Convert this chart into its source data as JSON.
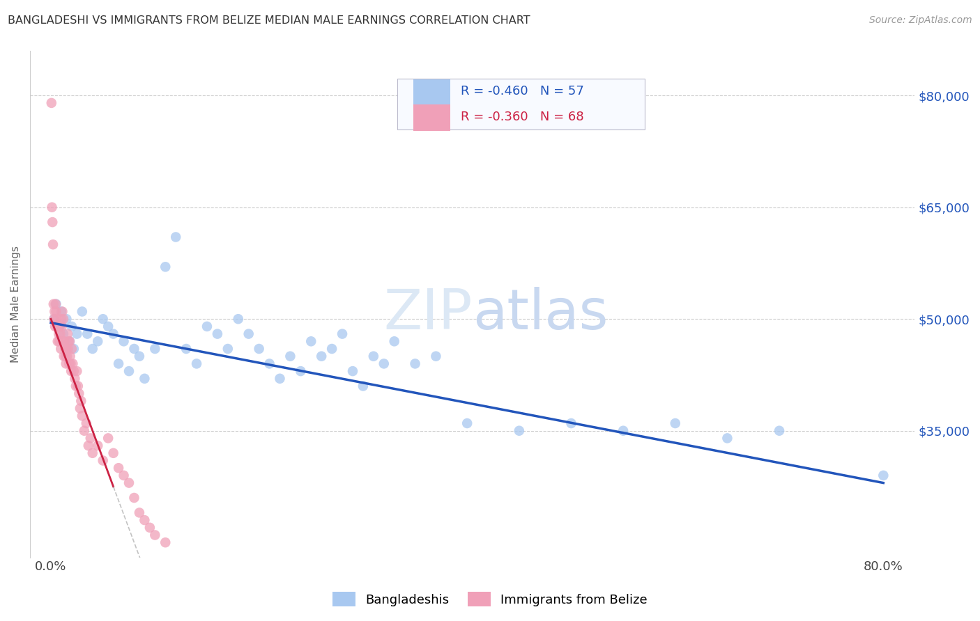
{
  "title": "BANGLADESHI VS IMMIGRANTS FROM BELIZE MEDIAN MALE EARNINGS CORRELATION CHART",
  "source": "Source: ZipAtlas.com",
  "ylabel": "Median Male Earnings",
  "background_color": "#ffffff",
  "blue_color": "#a8c8f0",
  "pink_color": "#f0a0b8",
  "blue_line_color": "#2255bb",
  "pink_line_color": "#cc2244",
  "r_blue": -0.46,
  "n_blue": 57,
  "r_pink": -0.36,
  "n_pink": 68,
  "ytick_labels": [
    "$80,000",
    "$65,000",
    "$50,000",
    "$35,000"
  ],
  "ytick_values": [
    80000,
    65000,
    50000,
    35000
  ],
  "xtick_labels": [
    "0.0%",
    "80.0%"
  ],
  "xtick_values": [
    0.0,
    80.0
  ],
  "xmin": -2.0,
  "xmax": 83.0,
  "ymin": 18000,
  "ymax": 86000,
  "blue_scatter_x": [
    0.3,
    0.5,
    0.8,
    1.0,
    1.2,
    1.5,
    1.8,
    2.0,
    2.2,
    2.5,
    3.0,
    3.5,
    4.0,
    4.5,
    5.0,
    5.5,
    6.0,
    6.5,
    7.0,
    7.5,
    8.0,
    8.5,
    9.0,
    10.0,
    11.0,
    12.0,
    13.0,
    14.0,
    15.0,
    16.0,
    17.0,
    18.0,
    19.0,
    20.0,
    21.0,
    22.0,
    23.0,
    24.0,
    25.0,
    26.0,
    27.0,
    28.0,
    29.0,
    30.0,
    31.0,
    32.0,
    33.0,
    35.0,
    37.0,
    40.0,
    45.0,
    50.0,
    55.0,
    60.0,
    65.0,
    70.0,
    80.0
  ],
  "blue_scatter_y": [
    50000,
    52000,
    49000,
    51000,
    48000,
    50000,
    47000,
    49000,
    46000,
    48000,
    51000,
    48000,
    46000,
    47000,
    50000,
    49000,
    48000,
    44000,
    47000,
    43000,
    46000,
    45000,
    42000,
    46000,
    57000,
    61000,
    46000,
    44000,
    49000,
    48000,
    46000,
    50000,
    48000,
    46000,
    44000,
    42000,
    45000,
    43000,
    47000,
    45000,
    46000,
    48000,
    43000,
    41000,
    45000,
    44000,
    47000,
    44000,
    45000,
    36000,
    35000,
    36000,
    35000,
    36000,
    34000,
    35000,
    29000
  ],
  "pink_scatter_x": [
    0.05,
    0.1,
    0.15,
    0.2,
    0.25,
    0.3,
    0.35,
    0.4,
    0.45,
    0.5,
    0.55,
    0.6,
    0.65,
    0.7,
    0.75,
    0.8,
    0.85,
    0.9,
    0.95,
    1.0,
    1.05,
    1.1,
    1.15,
    1.2,
    1.25,
    1.3,
    1.35,
    1.4,
    1.45,
    1.5,
    1.55,
    1.6,
    1.65,
    1.7,
    1.75,
    1.8,
    1.85,
    1.9,
    1.95,
    2.0,
    2.1,
    2.2,
    2.3,
    2.4,
    2.5,
    2.6,
    2.7,
    2.8,
    2.9,
    3.0,
    3.2,
    3.4,
    3.6,
    3.8,
    4.0,
    4.5,
    5.0,
    5.5,
    6.0,
    6.5,
    7.0,
    7.5,
    8.0,
    8.5,
    9.0,
    9.5,
    10.0,
    11.0
  ],
  "pink_scatter_y": [
    79000,
    65000,
    63000,
    60000,
    52000,
    50000,
    51000,
    49000,
    52000,
    51000,
    50000,
    49000,
    47000,
    49000,
    48000,
    47000,
    49000,
    48000,
    46000,
    50000,
    49000,
    51000,
    47000,
    50000,
    45000,
    47000,
    46000,
    45000,
    44000,
    46000,
    45000,
    48000,
    46000,
    47000,
    44000,
    47000,
    45000,
    44000,
    43000,
    46000,
    44000,
    43000,
    42000,
    41000,
    43000,
    41000,
    40000,
    38000,
    39000,
    37000,
    35000,
    36000,
    33000,
    34000,
    32000,
    33000,
    31000,
    34000,
    32000,
    30000,
    29000,
    28000,
    26000,
    24000,
    23000,
    22000,
    21000,
    20000
  ]
}
